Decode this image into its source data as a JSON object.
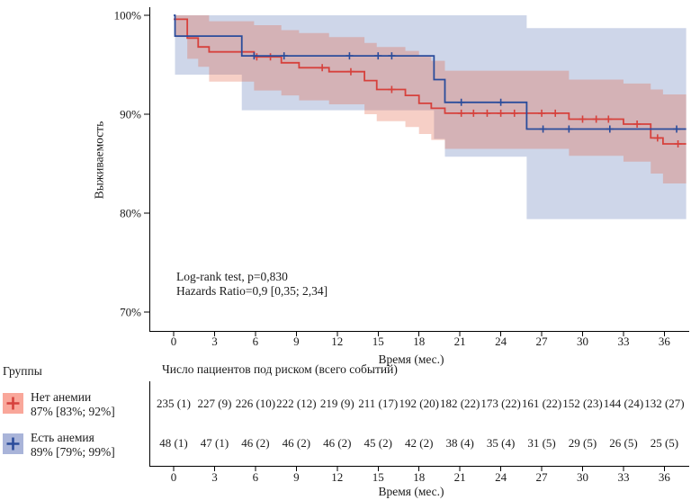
{
  "colors": {
    "red_line": "#D6413C",
    "blue_line": "#2B4C9B",
    "red_band": "rgba(225,95,65,0.30)",
    "blue_band": "rgba(58,91,168,0.25)",
    "red_swatch": "#F9A79A",
    "blue_swatch": "#A9B4D9",
    "axis": "#000000"
  },
  "plot": {
    "y_title": "Выживаемость",
    "x_title": "Время (мес.)",
    "y_tick_labels": [
      "100%",
      "90%",
      "80%",
      "70%"
    ],
    "y_tick_values": [
      100,
      90,
      80,
      70
    ],
    "x_tick_values": [
      0,
      3,
      6,
      9,
      12,
      15,
      18,
      21,
      24,
      27,
      30,
      33,
      36
    ],
    "annotation_line1": "Log-rank test, p=0,830",
    "annotation_line2": "Hazards Ratio=0,9 [0,35; 2,34]"
  },
  "chart_data": {
    "type": "line",
    "subtype": "kaplan-meier-step",
    "title": "",
    "xlabel": "Время (мес.)",
    "ylabel": "Выживаемость",
    "xlim": [
      0,
      38
    ],
    "ylim": [
      68,
      101
    ],
    "x_ticks": [
      0,
      3,
      6,
      9,
      12,
      15,
      18,
      21,
      24,
      27,
      30,
      33,
      36
    ],
    "y_ticks_percent": [
      70,
      80,
      90,
      100
    ],
    "grid": false,
    "legend_position": "bottom-left-outside",
    "series": [
      {
        "name": "Нет анемии",
        "estimate": "87% [83%; 92%]",
        "end_time": 37.6,
        "steps": [
          [
            0,
            99.6
          ],
          [
            1.0,
            97.7
          ],
          [
            1.8,
            96.8
          ],
          [
            2.6,
            96.3
          ],
          [
            5.9,
            95.8
          ],
          [
            7.9,
            95.2
          ],
          [
            9.2,
            94.7
          ],
          [
            11.4,
            94.3
          ],
          [
            14.0,
            93.4
          ],
          [
            14.9,
            92.5
          ],
          [
            17.0,
            91.9
          ],
          [
            18.0,
            91.1
          ],
          [
            18.9,
            90.6
          ],
          [
            19.9,
            90.1
          ],
          [
            29.0,
            89.5
          ],
          [
            33.0,
            89.0
          ],
          [
            35.0,
            87.6
          ],
          [
            35.9,
            87.0
          ]
        ],
        "censor_times": [
          6.1,
          7.1,
          10.9,
          13.0,
          16.0,
          21.1,
          22.0,
          23.0,
          24.0,
          25.0,
          27.0,
          28.0,
          30.0,
          31.0,
          31.9,
          34.0,
          35.5,
          37.0
        ],
        "ci_band": [
          [
            0.15,
            100,
            97.8
          ],
          [
            1.0,
            100,
            95.6
          ],
          [
            1.8,
            100,
            94.8
          ],
          [
            2.6,
            99.4,
            93.3
          ],
          [
            5.9,
            99.0,
            92.4
          ],
          [
            7.9,
            98.5,
            91.9
          ],
          [
            9.2,
            98.2,
            91.4
          ],
          [
            11.4,
            97.8,
            91.0
          ],
          [
            14.0,
            97.2,
            90.0
          ],
          [
            14.9,
            96.8,
            89.3
          ],
          [
            17.0,
            96.4,
            88.7
          ],
          [
            18.0,
            95.9,
            88.0
          ],
          [
            18.9,
            95.4,
            87.4
          ],
          [
            19.9,
            94.4,
            86.5
          ],
          [
            29.0,
            93.5,
            85.8
          ],
          [
            33.0,
            93.1,
            85.2
          ],
          [
            35.0,
            92.5,
            84.0
          ],
          [
            35.9,
            92.0,
            83.0
          ]
        ]
      },
      {
        "name": "Есть анемия",
        "estimate": "89% [79%; 99%]",
        "end_time": 37.6,
        "steps": [
          [
            0,
            100
          ],
          [
            0.1,
            97.9
          ],
          [
            5.0,
            95.9
          ],
          [
            19.1,
            93.5
          ],
          [
            19.9,
            91.2
          ],
          [
            25.9,
            88.5
          ]
        ],
        "censor_times": [
          5.9,
          8.1,
          12.9,
          15.0,
          16.0,
          21.1,
          24.0,
          27.1,
          29.0,
          32.0,
          36.9
        ],
        "ci_band": [
          [
            0.1,
            100,
            94.0
          ],
          [
            5.0,
            100,
            90.4
          ],
          [
            19.1,
            100,
            87.5
          ],
          [
            19.9,
            100,
            85.7
          ],
          [
            25.9,
            98.7,
            79.4
          ]
        ]
      }
    ]
  },
  "legend": {
    "title": "Группы",
    "items": [
      {
        "label": "Нет анемии",
        "estimate": "87% [83%; 92%]"
      },
      {
        "label": "Есть анемия",
        "estimate": "89% [79%; 99%]"
      }
    ]
  },
  "risk_table": {
    "header": "Число пациентов под риском (всего событий)",
    "x_title": "Время (мес.)",
    "times": [
      0,
      3,
      6,
      9,
      12,
      15,
      18,
      21,
      24,
      27,
      30,
      33,
      36
    ],
    "rows": [
      {
        "group": "Нет анемии",
        "values": [
          "235 (1)",
          "227 (9)",
          "226 (10)",
          "222 (12)",
          "219 (9)",
          "211 (17)",
          "192 (20)",
          "182 (22)",
          "173 (22)",
          "161 (22)",
          "152 (23)",
          "144 (24)",
          "132 (27)"
        ]
      },
      {
        "group": "Есть анемия",
        "values": [
          "48 (1)",
          "47 (1)",
          "46 (2)",
          "46 (2)",
          "46 (2)",
          "45 (2)",
          "42 (2)",
          "38 (4)",
          "35 (4)",
          "31 (5)",
          "29 (5)",
          "26 (5)",
          "25 (5)"
        ]
      }
    ]
  }
}
